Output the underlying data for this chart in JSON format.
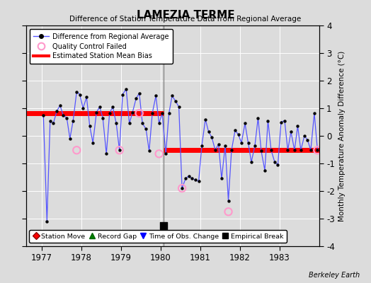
{
  "title": "LAMEZIA TERME",
  "subtitle": "Difference of Station Temperature Data from Regional Average",
  "ylabel": "Monthly Temperature Anomaly Difference (°C)",
  "xlabel_years": [
    1977,
    1978,
    1979,
    1980,
    1981,
    1982,
    1983
  ],
  "xlim": [
    1976.6,
    1984.0
  ],
  "ylim": [
    -4,
    4
  ],
  "yticks": [
    -4,
    -3,
    -2,
    -1,
    0,
    1,
    2,
    3,
    4
  ],
  "credit": "Berkeley Earth",
  "background_color": "#dcdcdc",
  "plot_bg_color": "#dcdcdc",
  "bias1_start": 1976.6,
  "bias1_end": 1980.08,
  "bias1_value": 0.82,
  "bias2_start": 1980.08,
  "bias2_end": 1984.0,
  "bias2_value": -0.52,
  "empirical_break_x": 1980.08,
  "empirical_break_y": -3.25,
  "time_data": [
    1977.04,
    1977.13,
    1977.21,
    1977.29,
    1977.38,
    1977.46,
    1977.54,
    1977.63,
    1977.71,
    1977.79,
    1977.88,
    1977.96,
    1978.04,
    1978.13,
    1978.21,
    1978.29,
    1978.38,
    1978.46,
    1978.54,
    1978.63,
    1978.71,
    1978.79,
    1978.88,
    1978.96,
    1979.04,
    1979.13,
    1979.21,
    1979.29,
    1979.38,
    1979.46,
    1979.54,
    1979.63,
    1979.71,
    1979.79,
    1979.88,
    1979.96,
    1980.04,
    1980.13,
    1980.21,
    1980.29,
    1980.38,
    1980.46,
    1980.54,
    1980.63,
    1980.71,
    1980.79,
    1980.88,
    1980.96,
    1981.04,
    1981.13,
    1981.21,
    1981.29,
    1981.38,
    1981.46,
    1981.54,
    1981.63,
    1981.71,
    1981.79,
    1981.88,
    1981.96,
    1982.04,
    1982.13,
    1982.21,
    1982.29,
    1982.38,
    1982.46,
    1982.54,
    1982.63,
    1982.71,
    1982.79,
    1982.88,
    1982.96,
    1983.04,
    1983.13,
    1983.21,
    1983.29,
    1983.38,
    1983.46,
    1983.54,
    1983.63,
    1983.71,
    1983.79,
    1983.88,
    1983.96
  ],
  "values": [
    0.75,
    -3.1,
    0.55,
    0.45,
    0.9,
    1.1,
    0.75,
    0.65,
    -0.1,
    0.55,
    1.6,
    1.5,
    1.0,
    1.4,
    0.35,
    -0.25,
    0.85,
    1.05,
    0.65,
    -0.65,
    0.82,
    1.05,
    0.45,
    -0.52,
    1.5,
    1.7,
    0.45,
    0.85,
    1.35,
    1.55,
    0.45,
    0.25,
    -0.55,
    0.82,
    1.45,
    0.45,
    0.82,
    -0.65,
    0.82,
    1.45,
    1.25,
    1.05,
    -1.9,
    -1.55,
    -1.45,
    -1.55,
    -1.6,
    -1.65,
    -0.35,
    0.6,
    0.15,
    -0.05,
    -0.52,
    -0.3,
    -1.55,
    -0.35,
    -2.35,
    -0.52,
    0.2,
    0.05,
    -0.25,
    0.45,
    -0.25,
    -0.95,
    -0.35,
    0.65,
    -0.55,
    -1.25,
    0.55,
    -0.52,
    -0.95,
    -1.05,
    0.5,
    0.55,
    -0.52,
    0.15,
    -0.52,
    0.35,
    -0.52,
    0.0,
    -0.15,
    -0.52,
    0.82,
    -0.52
  ],
  "qc_failed_x": [
    1977.88,
    1978.96,
    1979.46,
    1979.96,
    1980.54,
    1981.71,
    1983.96
  ],
  "qc_failed_y": [
    -0.52,
    -0.52,
    0.82,
    -0.65,
    -1.9,
    -2.75,
    -0.52
  ],
  "vertical_line_x": 1980.08,
  "line_color": "#5555ff",
  "bias_color": "#ff0000",
  "qc_color": "#ff99cc",
  "marker_color": "#000000",
  "grid_color": "#ffffff"
}
